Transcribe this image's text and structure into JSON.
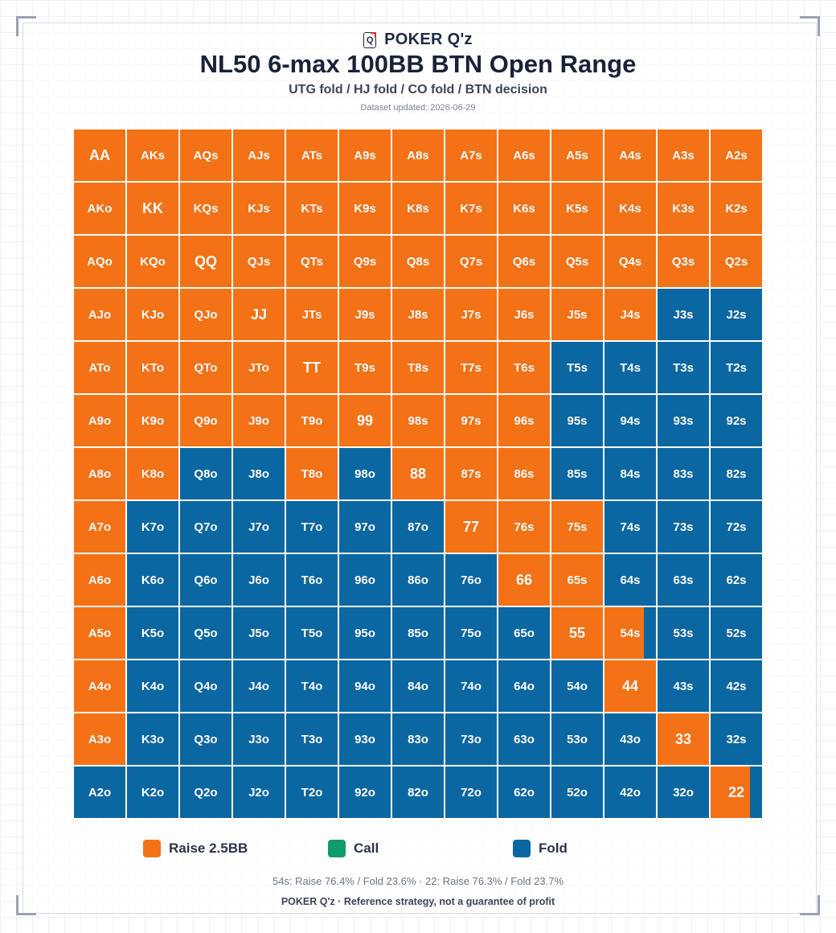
{
  "header": {
    "brand_name": "POKER Q'z",
    "brand_icon_letter": "Q",
    "title": "NL50 6-max 100BB BTN Open Range",
    "subtitle": "UTG fold / HJ fold / CO fold / BTN decision",
    "updated": "Dataset updated: 2026-06-29"
  },
  "colors": {
    "raise": "#f47216",
    "call": "#0f9b6e",
    "fold": "#0b67a2"
  },
  "legend": [
    {
      "key": "raise",
      "label": "Raise 2.5BB"
    },
    {
      "key": "call",
      "label": "Call"
    },
    {
      "key": "fold",
      "label": "Fold"
    }
  ],
  "note": "54s: Raise 76.4% / Fold 23.6% · 22: Raise 76.3% / Fold 23.7%",
  "footer": "POKER Q'z · Reference strategy, not a guarantee of profit",
  "chart_data": {
    "type": "heatmap",
    "ranks": [
      "A",
      "K",
      "Q",
      "J",
      "T",
      "9",
      "8",
      "7",
      "6",
      "5",
      "4",
      "3",
      "2"
    ],
    "actions": [
      "raise",
      "call",
      "fold"
    ],
    "legend": [
      "Raise 2.5BB",
      "Call",
      "Fold"
    ],
    "hands": [
      [
        "AA",
        "AKs",
        "AQs",
        "AJs",
        "ATs",
        "A9s",
        "A8s",
        "A7s",
        "A6s",
        "A5s",
        "A4s",
        "A3s",
        "A2s"
      ],
      [
        "AKo",
        "KK",
        "KQs",
        "KJs",
        "KTs",
        "K9s",
        "K8s",
        "K7s",
        "K6s",
        "K5s",
        "K4s",
        "K3s",
        "K2s"
      ],
      [
        "AQo",
        "KQo",
        "QQ",
        "QJs",
        "QTs",
        "Q9s",
        "Q8s",
        "Q7s",
        "Q6s",
        "Q5s",
        "Q4s",
        "Q3s",
        "Q2s"
      ],
      [
        "AJo",
        "KJo",
        "QJo",
        "JJ",
        "JTs",
        "J9s",
        "J8s",
        "J7s",
        "J6s",
        "J5s",
        "J4s",
        "J3s",
        "J2s"
      ],
      [
        "ATo",
        "KTo",
        "QTo",
        "JTo",
        "TT",
        "T9s",
        "T8s",
        "T7s",
        "T6s",
        "T5s",
        "T4s",
        "T3s",
        "T2s"
      ],
      [
        "A9o",
        "K9o",
        "Q9o",
        "J9o",
        "T9o",
        "99",
        "98s",
        "97s",
        "96s",
        "95s",
        "94s",
        "93s",
        "92s"
      ],
      [
        "A8o",
        "K8o",
        "Q8o",
        "J8o",
        "T8o",
        "98o",
        "88",
        "87s",
        "86s",
        "85s",
        "84s",
        "83s",
        "82s"
      ],
      [
        "A7o",
        "K7o",
        "Q7o",
        "J7o",
        "T7o",
        "97o",
        "87o",
        "77",
        "76s",
        "75s",
        "74s",
        "73s",
        "72s"
      ],
      [
        "A6o",
        "K6o",
        "Q6o",
        "J6o",
        "T6o",
        "96o",
        "86o",
        "76o",
        "66",
        "65s",
        "64s",
        "63s",
        "62s"
      ],
      [
        "A5o",
        "K5o",
        "Q5o",
        "J5o",
        "T5o",
        "95o",
        "85o",
        "75o",
        "65o",
        "55",
        "54s",
        "53s",
        "52s"
      ],
      [
        "A4o",
        "K4o",
        "Q4o",
        "J4o",
        "T4o",
        "94o",
        "84o",
        "74o",
        "64o",
        "54o",
        "44",
        "43s",
        "42s"
      ],
      [
        "A3o",
        "K3o",
        "Q3o",
        "J3o",
        "T3o",
        "93o",
        "83o",
        "73o",
        "63o",
        "53o",
        "43o",
        "33",
        "32s"
      ],
      [
        "A2o",
        "K2o",
        "Q2o",
        "J2o",
        "T2o",
        "92o",
        "82o",
        "72o",
        "62o",
        "52o",
        "42o",
        "32o",
        "22"
      ]
    ],
    "raise_freq": [
      [
        1,
        1,
        1,
        1,
        1,
        1,
        1,
        1,
        1,
        1,
        1,
        1,
        1
      ],
      [
        1,
        1,
        1,
        1,
        1,
        1,
        1,
        1,
        1,
        1,
        1,
        1,
        1
      ],
      [
        1,
        1,
        1,
        1,
        1,
        1,
        1,
        1,
        1,
        1,
        1,
        1,
        1
      ],
      [
        1,
        1,
        1,
        1,
        1,
        1,
        1,
        1,
        1,
        1,
        1,
        0,
        0
      ],
      [
        1,
        1,
        1,
        1,
        1,
        1,
        1,
        1,
        1,
        0,
        0,
        0,
        0
      ],
      [
        1,
        1,
        1,
        1,
        1,
        1,
        1,
        1,
        1,
        0,
        0,
        0,
        0
      ],
      [
        1,
        1,
        0,
        0,
        1,
        0,
        1,
        1,
        1,
        0,
        0,
        0,
        0
      ],
      [
        1,
        0,
        0,
        0,
        0,
        0,
        0,
        1,
        1,
        1,
        0,
        0,
        0
      ],
      [
        1,
        0,
        0,
        0,
        0,
        0,
        0,
        0,
        1,
        1,
        0,
        0,
        0
      ],
      [
        1,
        0,
        0,
        0,
        0,
        0,
        0,
        0,
        0,
        1,
        0.764,
        0,
        0
      ],
      [
        1,
        0,
        0,
        0,
        0,
        0,
        0,
        0,
        0,
        0,
        1,
        0,
        0
      ],
      [
        1,
        0,
        0,
        0,
        0,
        0,
        0,
        0,
        0,
        0,
        0,
        1,
        0
      ],
      [
        0,
        0,
        0,
        0,
        0,
        0,
        0,
        0,
        0,
        0,
        0,
        0,
        0.763
      ]
    ],
    "call_freq": "all 0"
  }
}
